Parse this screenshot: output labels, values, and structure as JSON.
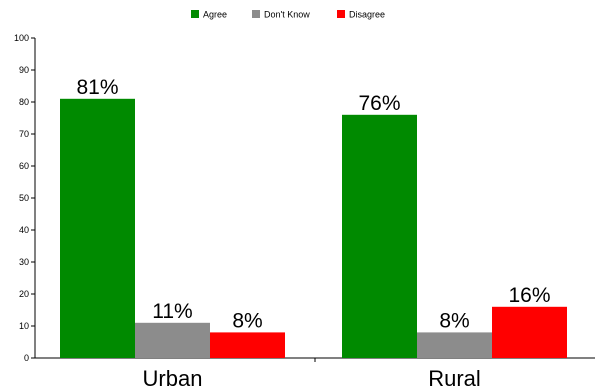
{
  "chart_data": {
    "type": "bar",
    "categories": [
      "Urban",
      "Rural"
    ],
    "series": [
      {
        "name": "Agree",
        "values": [
          81,
          76
        ],
        "labels": [
          "81%",
          "76%"
        ],
        "color": "#008a00"
      },
      {
        "name": "Don't Know",
        "values": [
          11,
          8
        ],
        "labels": [
          "11%",
          "8%"
        ],
        "color": "#8c8c8c"
      },
      {
        "name": "Disagree",
        "values": [
          8,
          16
        ],
        "labels": [
          "8%",
          "16%"
        ],
        "color": "#ff0000"
      }
    ],
    "ylim": [
      0,
      100
    ],
    "yticks": [
      "0",
      "10",
      "20",
      "30",
      "40",
      "50",
      "60",
      "70",
      "80",
      "90",
      "100"
    ],
    "title": "",
    "xlabel": "",
    "ylabel": "",
    "legend_position": "top-center",
    "grid": false
  }
}
